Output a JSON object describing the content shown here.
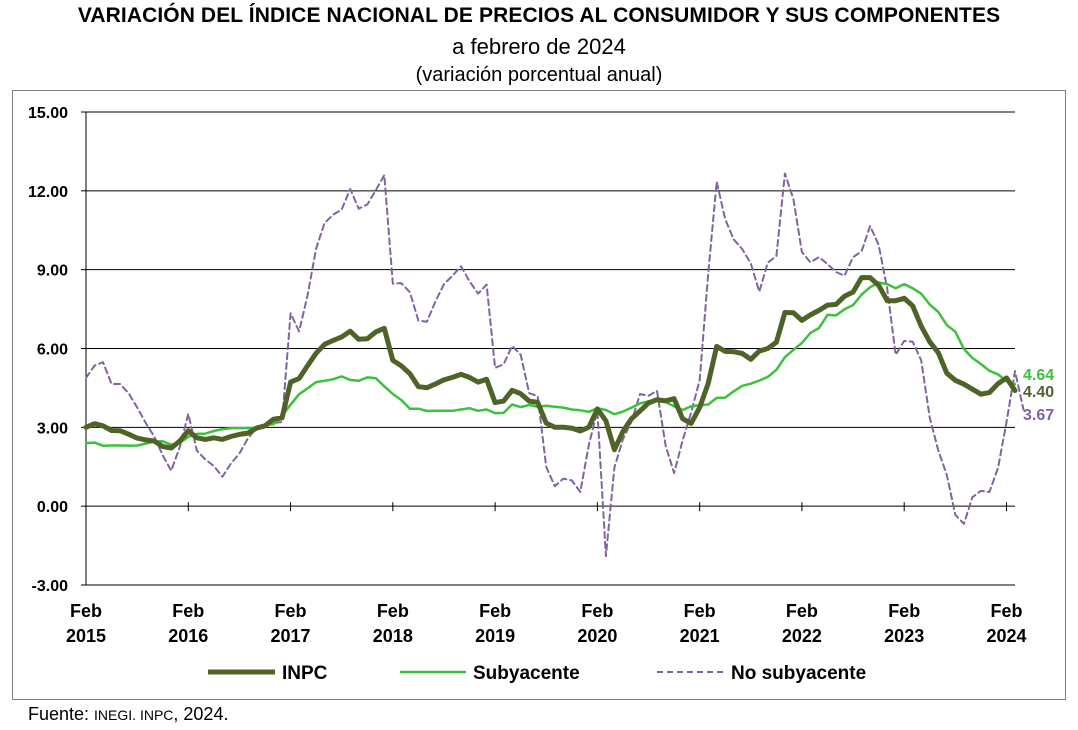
{
  "chart_data": {
    "type": "line",
    "title": "VARIACIÓN DEL ÍNDICE NACIONAL DE PRECIOS AL CONSUMIDOR Y SUS COMPONENTES",
    "subtitle": "a febrero de 2024",
    "subtitle2": "(variación porcentual anual)",
    "xlabel": "",
    "ylabel": "",
    "ylim": [
      -3.0,
      15.0
    ],
    "yticks": [
      "-3.00",
      "0.00",
      "3.00",
      "6.00",
      "9.00",
      "12.00",
      "15.00"
    ],
    "ytick_values": [
      -3,
      0,
      3,
      6,
      9,
      12,
      15
    ],
    "x_ticks": [
      {
        "top": "Feb",
        "bottom": "2015",
        "month_index": 0
      },
      {
        "top": "Feb",
        "bottom": "2016",
        "month_index": 12
      },
      {
        "top": "Feb",
        "bottom": "2017",
        "month_index": 24
      },
      {
        "top": "Feb",
        "bottom": "2018",
        "month_index": 36
      },
      {
        "top": "Feb",
        "bottom": "2019",
        "month_index": 48
      },
      {
        "top": "Feb",
        "bottom": "2020",
        "month_index": 60
      },
      {
        "top": "Feb",
        "bottom": "2021",
        "month_index": 72
      },
      {
        "top": "Feb",
        "bottom": "2022",
        "month_index": 84
      },
      {
        "top": "Feb",
        "bottom": "2023",
        "month_index": 96
      },
      {
        "top": "Feb",
        "bottom": "2024",
        "month_index": 108
      }
    ],
    "x_start": "Feb 2015",
    "x_end": "Feb 2024",
    "legend_position": "bottom",
    "series": [
      {
        "name": "INPC",
        "color": "#4f6228",
        "style": "solid-thick",
        "end_label": "4.40",
        "values": [
          3.0,
          3.14,
          3.06,
          2.88,
          2.87,
          2.74,
          2.59,
          2.52,
          2.48,
          2.27,
          2.21,
          2.48,
          2.87,
          2.6,
          2.54,
          2.6,
          2.54,
          2.65,
          2.73,
          2.78,
          2.97,
          3.06,
          3.31,
          3.36,
          4.72,
          4.86,
          5.35,
          5.82,
          6.16,
          6.31,
          6.44,
          6.66,
          6.35,
          6.37,
          6.63,
          6.77,
          5.55,
          5.34,
          5.04,
          4.55,
          4.51,
          4.65,
          4.81,
          4.9,
          5.02,
          4.9,
          4.72,
          4.83,
          3.94,
          4.0,
          4.41,
          4.28,
          4.0,
          3.95,
          3.16,
          3.0,
          3.0,
          2.97,
          2.86,
          3.01,
          3.7,
          3.25,
          2.15,
          2.84,
          3.33,
          3.62,
          3.93,
          4.05,
          4.01,
          4.09,
          3.33,
          3.15,
          3.76,
          4.67,
          6.08,
          5.89,
          5.88,
          5.81,
          5.59,
          5.9,
          6.0,
          6.24,
          7.37,
          7.36,
          7.07,
          7.28,
          7.45,
          7.65,
          7.68,
          7.99,
          8.15,
          8.7,
          8.7,
          8.41,
          7.82,
          7.82,
          7.91,
          7.62,
          6.85,
          6.25,
          5.84,
          5.06,
          4.79,
          4.64,
          4.45,
          4.26,
          4.32,
          4.66,
          4.88,
          4.4
        ]
      },
      {
        "name": "Subyacente",
        "color": "#3cc13c",
        "style": "solid",
        "end_label": "4.64",
        "values": [
          2.4,
          2.42,
          2.3,
          2.31,
          2.31,
          2.3,
          2.31,
          2.38,
          2.46,
          2.47,
          2.34,
          2.41,
          2.64,
          2.75,
          2.76,
          2.86,
          2.93,
          2.97,
          2.97,
          2.97,
          2.99,
          3.1,
          3.12,
          3.44,
          3.86,
          4.26,
          4.48,
          4.72,
          4.77,
          4.83,
          4.94,
          4.8,
          4.77,
          4.9,
          4.87,
          4.56,
          4.27,
          4.04,
          3.71,
          3.71,
          3.62,
          3.63,
          3.63,
          3.63,
          3.68,
          3.73,
          3.63,
          3.68,
          3.54,
          3.55,
          3.87,
          3.77,
          3.85,
          3.78,
          3.82,
          3.78,
          3.75,
          3.68,
          3.65,
          3.59,
          3.73,
          3.66,
          3.5,
          3.6,
          3.75,
          3.91,
          3.99,
          3.99,
          3.96,
          3.8,
          3.66,
          3.8,
          3.84,
          3.87,
          4.12,
          4.13,
          4.37,
          4.58,
          4.66,
          4.78,
          4.92,
          5.19,
          5.67,
          5.95,
          6.21,
          6.59,
          6.78,
          7.28,
          7.26,
          7.49,
          7.65,
          8.05,
          8.33,
          8.51,
          8.45,
          8.29,
          8.45,
          8.29,
          8.09,
          7.67,
          7.39,
          6.89,
          6.64,
          5.98,
          5.64,
          5.41,
          5.15,
          5.02,
          4.76,
          4.64
        ]
      },
      {
        "name": "No subyacente",
        "color": "#8064a2",
        "style": "dashed",
        "end_label": "3.67",
        "values": [
          4.88,
          5.35,
          5.48,
          4.65,
          4.65,
          4.3,
          3.76,
          3.17,
          2.65,
          1.94,
          1.35,
          2.25,
          3.51,
          2.12,
          1.78,
          1.53,
          1.12,
          1.62,
          2.0,
          2.58,
          2.97,
          3.09,
          3.17,
          3.2,
          7.34,
          6.65,
          8.03,
          9.8,
          10.78,
          11.09,
          11.29,
          12.07,
          11.32,
          11.48,
          12.02,
          12.6,
          8.47,
          8.49,
          8.14,
          7.06,
          7.02,
          7.79,
          8.45,
          8.77,
          9.13,
          8.56,
          8.09,
          8.43,
          5.26,
          5.4,
          6.1,
          5.76,
          4.3,
          4.19,
          1.5,
          0.76,
          1.05,
          0.98,
          0.54,
          2.35,
          3.62,
          -1.9,
          1.47,
          2.55,
          3.22,
          4.27,
          4.2,
          4.39,
          2.31,
          1.26,
          2.5,
          3.56,
          4.8,
          8.85,
          12.34,
          10.92,
          10.15,
          9.78,
          9.24,
          8.16,
          9.27,
          9.52,
          12.66,
          11.69,
          9.67,
          9.28,
          9.48,
          9.21,
          8.91,
          8.77,
          9.48,
          9.7,
          10.66,
          9.95,
          8.28,
          5.76,
          6.29,
          6.26,
          5.55,
          3.36,
          2.12,
          1.19,
          -0.33,
          -0.67,
          0.34,
          0.58,
          0.54,
          1.45,
          3.2,
          5.14,
          3.67
        ]
      }
    ]
  },
  "source": {
    "prefix": "Fuente: ",
    "small": "INEGI. INPC",
    "suffix": ", 2024."
  }
}
